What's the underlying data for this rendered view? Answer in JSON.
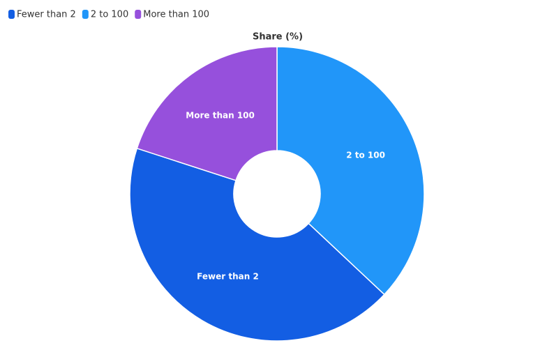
{
  "chart_data": {
    "type": "donut",
    "title": "Share (%)",
    "categories": [
      "Fewer than 2",
      "2 to 100",
      "More than 100"
    ],
    "values": [
      43,
      37,
      20
    ],
    "colors": [
      "#135ee3",
      "#2196f9",
      "#9650dc"
    ],
    "legend": "top-left"
  }
}
